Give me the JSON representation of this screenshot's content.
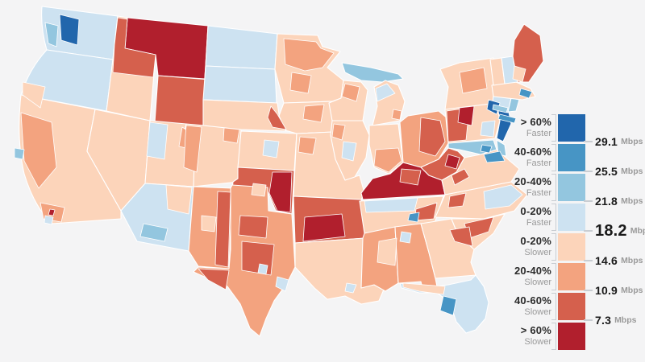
{
  "page": {
    "background": "#f4f4f5"
  },
  "legend": {
    "items": [
      {
        "id": "faster-60",
        "range": "> 60%",
        "direction": "Faster",
        "color": "#2166ac"
      },
      {
        "id": "faster-40-60",
        "range": "40-60%",
        "direction": "Faster",
        "color": "#4795c5"
      },
      {
        "id": "faster-20-40",
        "range": "20-40%",
        "direction": "Faster",
        "color": "#93c6df"
      },
      {
        "id": "faster-0-20",
        "range": "0-20%",
        "direction": "Faster",
        "color": "#cde2f1"
      },
      {
        "id": "slower-0-20",
        "range": "0-20%",
        "direction": "Slower",
        "color": "#fcd4ba"
      },
      {
        "id": "slower-20-40",
        "range": "20-40%",
        "direction": "Slower",
        "color": "#f3a37f"
      },
      {
        "id": "slower-40-60",
        "range": "40-60%",
        "direction": "Slower",
        "color": "#d5604d"
      },
      {
        "id": "slower-60",
        "range": "> 60%",
        "direction": "Slower",
        "color": "#b11f2d"
      }
    ],
    "ticks": [
      {
        "value": "29.1",
        "unit": "Mbps",
        "emphasis": false
      },
      {
        "value": "25.5",
        "unit": "Mbps",
        "emphasis": false
      },
      {
        "value": "21.8",
        "unit": "Mbps",
        "emphasis": false
      },
      {
        "value": "18.2",
        "unit": "Mbps",
        "emphasis": true
      },
      {
        "value": "14.6",
        "unit": "Mbps",
        "emphasis": false
      },
      {
        "value": "10.9",
        "unit": "Mbps",
        "emphasis": false
      },
      {
        "value": "7.3",
        "unit": "Mbps",
        "emphasis": false
      }
    ]
  },
  "map": {
    "border_color": "#ffffff",
    "states": [
      {
        "id": "WA",
        "name": "Washington",
        "category": "faster-0-20"
      },
      {
        "id": "OR",
        "name": "Oregon",
        "category": "faster-0-20"
      },
      {
        "id": "CA",
        "name": "California",
        "category": "slower-0-20"
      },
      {
        "id": "NV",
        "name": "Nevada",
        "category": "slower-0-20"
      },
      {
        "id": "ID",
        "name": "Idaho",
        "category": "slower-0-20"
      },
      {
        "id": "MT",
        "name": "Montana",
        "category": "slower-60"
      },
      {
        "id": "WY",
        "name": "Wyoming",
        "category": "slower-40-60"
      },
      {
        "id": "UT",
        "name": "Utah",
        "category": "slower-0-20"
      },
      {
        "id": "CO",
        "name": "Colorado",
        "category": "slower-0-20"
      },
      {
        "id": "AZ",
        "name": "Arizona",
        "category": "faster-0-20"
      },
      {
        "id": "NM",
        "name": "New Mexico",
        "category": "slower-20-40"
      },
      {
        "id": "ND",
        "name": "North Dakota",
        "category": "faster-0-20"
      },
      {
        "id": "SD",
        "name": "South Dakota",
        "category": "faster-0-20"
      },
      {
        "id": "NE",
        "name": "Nebraska",
        "category": "slower-0-20"
      },
      {
        "id": "KS",
        "name": "Kansas",
        "category": "slower-0-20"
      },
      {
        "id": "OK",
        "name": "Oklahoma",
        "category": "slower-40-60"
      },
      {
        "id": "TX",
        "name": "Texas",
        "category": "slower-20-40"
      },
      {
        "id": "MN",
        "name": "Minnesota",
        "category": "slower-0-20"
      },
      {
        "id": "IA",
        "name": "Iowa",
        "category": "slower-0-20"
      },
      {
        "id": "MO",
        "name": "Missouri",
        "category": "slower-0-20"
      },
      {
        "id": "AR",
        "name": "Arkansas",
        "category": "slower-40-60"
      },
      {
        "id": "LA",
        "name": "Louisiana",
        "category": "slower-0-20"
      },
      {
        "id": "WI",
        "name": "Wisconsin",
        "category": "slower-0-20"
      },
      {
        "id": "MIUP",
        "name": "Michigan Upper Peninsula",
        "category": "faster-20-40"
      },
      {
        "id": "MI",
        "name": "Michigan",
        "category": "slower-0-20"
      },
      {
        "id": "IL",
        "name": "Illinois",
        "category": "slower-0-20"
      },
      {
        "id": "IN",
        "name": "Indiana",
        "category": "slower-0-20"
      },
      {
        "id": "OH",
        "name": "Ohio",
        "category": "slower-20-40"
      },
      {
        "id": "KY",
        "name": "Kentucky",
        "category": "slower-60"
      },
      {
        "id": "TN",
        "name": "Tennessee",
        "category": "slower-0-20"
      },
      {
        "id": "MS",
        "name": "Mississippi",
        "category": "slower-20-40"
      },
      {
        "id": "AL",
        "name": "Alabama",
        "category": "slower-20-40"
      },
      {
        "id": "GA",
        "name": "Georgia",
        "category": "slower-0-20"
      },
      {
        "id": "FL",
        "name": "Florida",
        "category": "faster-0-20"
      },
      {
        "id": "SC",
        "name": "South Carolina",
        "category": "slower-0-20"
      },
      {
        "id": "NC",
        "name": "North Carolina",
        "category": "slower-0-20"
      },
      {
        "id": "VA",
        "name": "Virginia",
        "category": "slower-0-20"
      },
      {
        "id": "WV",
        "name": "West Virginia",
        "category": "slower-40-60"
      },
      {
        "id": "MD",
        "name": "Maryland",
        "category": "faster-20-40"
      },
      {
        "id": "DE",
        "name": "Delaware",
        "category": "faster-20-40"
      },
      {
        "id": "PA",
        "name": "Pennsylvania",
        "category": "slower-0-20"
      },
      {
        "id": "NJ",
        "name": "New Jersey",
        "category": "faster-60"
      },
      {
        "id": "NY",
        "name": "New York",
        "category": "slower-0-20"
      },
      {
        "id": "CT",
        "name": "Connecticut",
        "category": "faster-0-20"
      },
      {
        "id": "RI",
        "name": "Rhode Island",
        "category": "faster-20-40"
      },
      {
        "id": "MA",
        "name": "Massachusetts",
        "category": "slower-0-20"
      },
      {
        "id": "VT",
        "name": "Vermont",
        "category": "slower-0-20"
      },
      {
        "id": "NH",
        "name": "New Hampshire",
        "category": "faster-0-20"
      },
      {
        "id": "ME",
        "name": "Maine",
        "category": "slower-40-60"
      }
    ],
    "regions": [
      {
        "id": "wa-puget-metro",
        "state": "WA",
        "category": "faster-60"
      },
      {
        "id": "wa-coast",
        "state": "WA",
        "category": "faster-20-40"
      },
      {
        "id": "or-southwest",
        "state": "OR",
        "category": "slower-0-20"
      },
      {
        "id": "ca-central-valley",
        "state": "CA",
        "category": "slower-20-40"
      },
      {
        "id": "ca-la-metro",
        "state": "CA",
        "category": "slower-20-40"
      },
      {
        "id": "ca-la-dot",
        "state": "CA",
        "category": "slower-60"
      },
      {
        "id": "ca-sf-bay",
        "state": "CA",
        "category": "faster-20-40"
      },
      {
        "id": "ca-san-diego",
        "state": "CA",
        "category": "faster-0-20"
      },
      {
        "id": "id-north",
        "state": "ID",
        "category": "slower-40-60"
      },
      {
        "id": "ut-west",
        "state": "UT",
        "category": "faster-0-20"
      },
      {
        "id": "ut-northeast",
        "state": "UT",
        "category": "slower-20-40"
      },
      {
        "id": "az-northeast",
        "state": "AZ",
        "category": "slower-0-20"
      },
      {
        "id": "az-tucson",
        "state": "AZ",
        "category": "faster-20-40"
      },
      {
        "id": "co-west",
        "state": "CO",
        "category": "slower-20-40"
      },
      {
        "id": "co-northeast",
        "state": "CO",
        "category": "slower-20-40"
      },
      {
        "id": "nm-east",
        "state": "NM",
        "category": "slower-40-60"
      },
      {
        "id": "nm-center",
        "state": "NM",
        "category": "slower-0-20"
      },
      {
        "id": "mn-north",
        "state": "MN",
        "category": "slower-20-40"
      },
      {
        "id": "mn-central",
        "state": "MN",
        "category": "slower-20-40"
      },
      {
        "id": "wi-northwest",
        "state": "WI",
        "category": "slower-20-40"
      },
      {
        "id": "mi-north",
        "state": "MI",
        "category": "faster-0-20"
      },
      {
        "id": "mi-detroit",
        "state": "MI",
        "category": "slower-20-40"
      },
      {
        "id": "ne-east",
        "state": "NE",
        "category": "slower-40-60"
      },
      {
        "id": "ks-central",
        "state": "KS",
        "category": "faster-0-20"
      },
      {
        "id": "mo-north",
        "state": "MO",
        "category": "slower-20-40"
      },
      {
        "id": "il-central",
        "state": "IL",
        "category": "faster-0-20"
      },
      {
        "id": "il-west",
        "state": "IL",
        "category": "slower-20-40"
      },
      {
        "id": "in-south",
        "state": "IN",
        "category": "slower-20-40"
      },
      {
        "id": "oh-east",
        "state": "OH",
        "category": "slower-40-60"
      },
      {
        "id": "pa-west",
        "state": "PA",
        "category": "slower-40-60"
      },
      {
        "id": "pa-center",
        "state": "PA",
        "category": "slower-60"
      },
      {
        "id": "pa-southeast",
        "state": "PA",
        "category": "faster-0-20"
      },
      {
        "id": "ny-central",
        "state": "NY",
        "category": "slower-20-40"
      },
      {
        "id": "ny-nyc",
        "state": "NY",
        "category": "faster-60"
      },
      {
        "id": "ny-long-island",
        "state": "NY",
        "category": "faster-40-60"
      },
      {
        "id": "ma-boston",
        "state": "MA",
        "category": "faster-40-60"
      },
      {
        "id": "ct-coast",
        "state": "CT",
        "category": "faster-20-40"
      },
      {
        "id": "me-south",
        "state": "ME",
        "category": "slower-0-20"
      },
      {
        "id": "md-dc",
        "state": "MD",
        "category": "faster-40-60"
      },
      {
        "id": "va-north",
        "state": "VA",
        "category": "faster-40-60"
      },
      {
        "id": "va-west",
        "state": "VA",
        "category": "slower-40-60"
      },
      {
        "id": "wv-south",
        "state": "WV",
        "category": "slower-60"
      },
      {
        "id": "ky-central",
        "state": "KY",
        "category": "slower-40-60"
      },
      {
        "id": "tn-west",
        "state": "TN",
        "category": "faster-0-20"
      },
      {
        "id": "tn-southeast",
        "state": "TN",
        "category": "slower-40-60"
      },
      {
        "id": "tn-chattanooga",
        "state": "TN",
        "category": "faster-40-60"
      },
      {
        "id": "nc-east",
        "state": "NC",
        "category": "faster-0-20"
      },
      {
        "id": "nc-west",
        "state": "NC",
        "category": "slower-40-60"
      },
      {
        "id": "sc-central",
        "state": "SC",
        "category": "slower-40-60"
      },
      {
        "id": "ga-east",
        "state": "GA",
        "category": "slower-40-60"
      },
      {
        "id": "al-huntsville",
        "state": "AL",
        "category": "faster-0-20"
      },
      {
        "id": "ms-east",
        "state": "MS",
        "category": "slower-0-20"
      },
      {
        "id": "la-neworleans",
        "state": "LA",
        "category": "faster-0-20"
      },
      {
        "id": "tx-west",
        "state": "TX",
        "category": "slower-40-60"
      },
      {
        "id": "tx-central",
        "state": "TX",
        "category": "slower-40-60"
      },
      {
        "id": "tx-north",
        "state": "TX",
        "category": "slower-40-60"
      },
      {
        "id": "tx-houston",
        "state": "TX",
        "category": "faster-0-20"
      },
      {
        "id": "tx-austin",
        "state": "TX",
        "category": "faster-0-20"
      },
      {
        "id": "ok-east",
        "state": "OK",
        "category": "slower-60"
      },
      {
        "id": "ok-center",
        "state": "OK",
        "category": "slower-0-20"
      },
      {
        "id": "ar-south",
        "state": "AR",
        "category": "slower-60"
      },
      {
        "id": "ia-central",
        "state": "IA",
        "category": "slower-20-40"
      },
      {
        "id": "fl-panhandle",
        "state": "FL",
        "category": "slower-0-20"
      },
      {
        "id": "fl-tampa",
        "state": "FL",
        "category": "faster-40-60"
      }
    ]
  }
}
